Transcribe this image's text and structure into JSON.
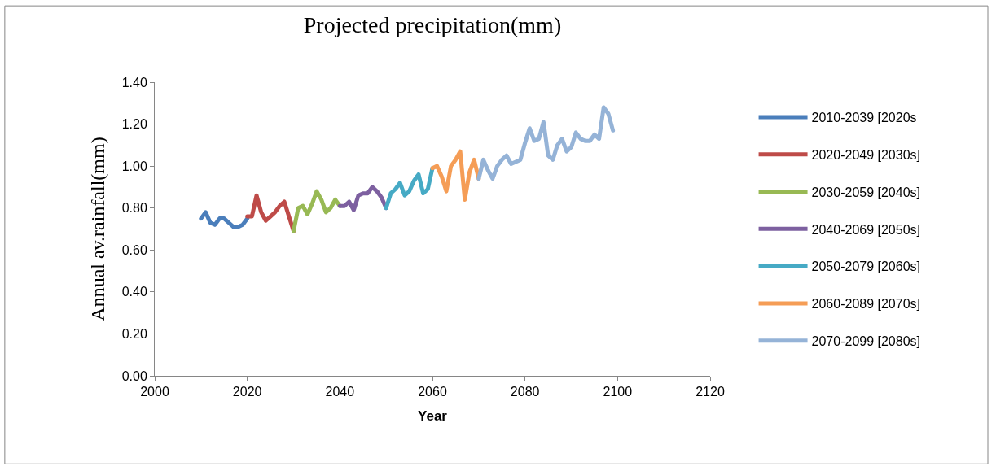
{
  "chart_data": {
    "type": "line",
    "title": "Projected precipitation(mm)",
    "xlabel": "Year",
    "ylabel": "Annual av.rainfall(mm)",
    "xlim": [
      2000,
      2120
    ],
    "xticks": [
      2000,
      2020,
      2040,
      2060,
      2080,
      2100,
      2120
    ],
    "ylim": [
      0,
      1.4
    ],
    "yticks": [
      {
        "value": 0,
        "label": "0.00"
      },
      {
        "value": 0.2,
        "label": "0.20"
      },
      {
        "value": 0.4,
        "label": "0.40"
      },
      {
        "value": 0.6,
        "label": "0.60"
      },
      {
        "value": 0.8,
        "label": "0.80"
      },
      {
        "value": 1.0,
        "label": "1.00"
      },
      {
        "value": 1.2,
        "label": "1.20"
      },
      {
        "value": 1.4,
        "label": "1.40"
      }
    ],
    "legend": "right",
    "marker": "none",
    "line_style": "solid",
    "series": [
      {
        "name": "2010-2039 [2020s",
        "color": "#4a7ebb",
        "x": [
          2010,
          2011,
          2012,
          2013,
          2014,
          2015,
          2016,
          2017,
          2018,
          2019,
          2020
        ],
        "values": [
          0.75,
          0.78,
          0.73,
          0.72,
          0.75,
          0.75,
          0.73,
          0.71,
          0.71,
          0.72,
          0.75
        ]
      },
      {
        "name": "2020-2049 [2030s]",
        "color": "#be4b48",
        "x": [
          2020,
          2021,
          2022,
          2023,
          2024,
          2025,
          2026,
          2027,
          2028,
          2029,
          2030
        ],
        "values": [
          0.76,
          0.76,
          0.86,
          0.78,
          0.74,
          0.76,
          0.78,
          0.81,
          0.83,
          0.76,
          0.69
        ]
      },
      {
        "name": "2030-2059 [2040s]",
        "color": "#98b954",
        "x": [
          2030,
          2031,
          2032,
          2033,
          2034,
          2035,
          2036,
          2037,
          2038,
          2039,
          2040
        ],
        "values": [
          0.69,
          0.8,
          0.81,
          0.77,
          0.82,
          0.88,
          0.84,
          0.78,
          0.8,
          0.84,
          0.81
        ]
      },
      {
        "name": "2040-2069 [2050s]",
        "color": "#7d60a0",
        "x": [
          2040,
          2041,
          2042,
          2043,
          2044,
          2045,
          2046,
          2047,
          2048,
          2049,
          2050
        ],
        "values": [
          0.81,
          0.81,
          0.83,
          0.79,
          0.86,
          0.87,
          0.87,
          0.9,
          0.88,
          0.85,
          0.8
        ]
      },
      {
        "name": "2050-2079 [2060s]",
        "color": "#46aac5",
        "x": [
          2050,
          2051,
          2052,
          2053,
          2054,
          2055,
          2056,
          2057,
          2058,
          2059,
          2060
        ],
        "values": [
          0.8,
          0.87,
          0.89,
          0.92,
          0.86,
          0.88,
          0.93,
          0.96,
          0.87,
          0.89,
          0.99
        ]
      },
      {
        "name": "2060-2089 [2070s]",
        "color": "#f59d56",
        "x": [
          2060,
          2061,
          2062,
          2063,
          2064,
          2065,
          2066,
          2067,
          2068,
          2069,
          2070
        ],
        "values": [
          0.99,
          1.0,
          0.95,
          0.88,
          1.0,
          1.03,
          1.07,
          0.84,
          0.97,
          1.03,
          0.94
        ]
      },
      {
        "name": "2070-2099 [2080s]",
        "color": "#95b3d7",
        "x": [
          2070,
          2071,
          2072,
          2073,
          2074,
          2075,
          2076,
          2077,
          2078,
          2079,
          2080,
          2081,
          2082,
          2083,
          2084,
          2085,
          2086,
          2087,
          2088,
          2089,
          2090,
          2091,
          2092,
          2093,
          2094,
          2095,
          2096,
          2097,
          2098,
          2099
        ],
        "values": [
          0.94,
          1.03,
          0.98,
          0.94,
          1.0,
          1.03,
          1.05,
          1.01,
          1.02,
          1.03,
          1.11,
          1.18,
          1.12,
          1.13,
          1.21,
          1.05,
          1.03,
          1.1,
          1.13,
          1.07,
          1.09,
          1.16,
          1.13,
          1.12,
          1.12,
          1.15,
          1.13,
          1.28,
          1.25,
          1.17
        ]
      }
    ]
  }
}
